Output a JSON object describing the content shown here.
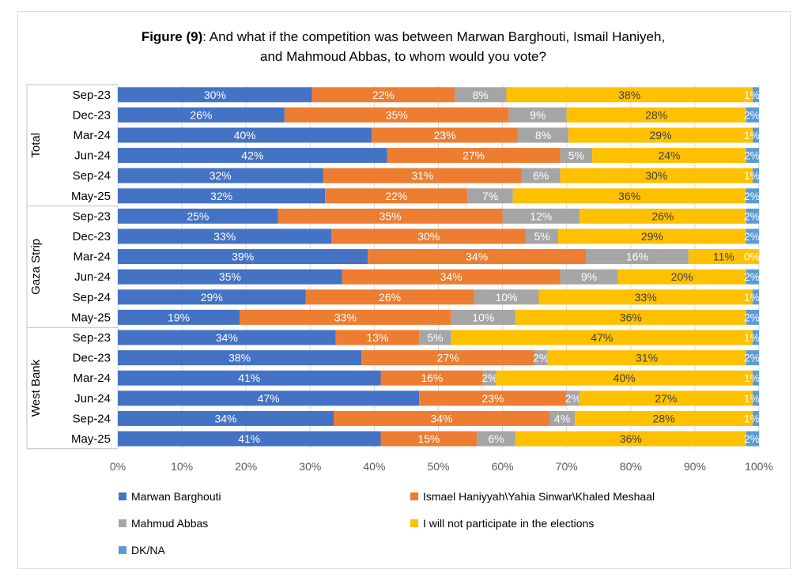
{
  "title": {
    "bold": "Figure (9)",
    "line1_rest": ": And what if the competition was between Marwan Barghouti, Ismail Haniyeh,",
    "line2": "and Mahmoud Abbas, to whom would you vote?"
  },
  "colors": {
    "barghouti": "#4472c4",
    "haniyeh": "#ed7d31",
    "abbas": "#a5a5a5",
    "notparticipate": "#ffc000",
    "dkna": "#5b9bd5",
    "grid": "#d9d9d9",
    "label_light": "#ffffff",
    "label_dark": "#404040"
  },
  "legend": [
    {
      "key": "barghouti",
      "label": "Marwan Barghouti"
    },
    {
      "key": "haniyeh",
      "label": "Ismael Haniyyah\\Yahia Sinwar\\Khaled Meshaal"
    },
    {
      "key": "abbas",
      "label": "Mahmud Abbas"
    },
    {
      "key": "notparticipate",
      "label": "I will not participate in the elections"
    },
    {
      "key": "dkna",
      "label": "DK/NA"
    }
  ],
  "chart_data": {
    "type": "bar",
    "orientation": "horizontal",
    "stacked": "percent",
    "xlim": [
      0,
      100
    ],
    "x_ticks": [
      "0%",
      "10%",
      "20%",
      "30%",
      "40%",
      "50%",
      "60%",
      "70%",
      "80%",
      "90%",
      "100%"
    ],
    "grid": true,
    "legend_position": "bottom",
    "groups": [
      {
        "name": "Total",
        "rows": [
          {
            "label": "Sep-23",
            "values": [
              30,
              22,
              8,
              38,
              1
            ],
            "labels": [
              "30%",
              "22%",
              "8%",
              "38%",
              "1%"
            ]
          },
          {
            "label": "Dec-23",
            "values": [
              26,
              35,
              9,
              28,
              2
            ],
            "labels": [
              "26%",
              "35%",
              "9%",
              "28%",
              "2%"
            ]
          },
          {
            "label": "Mar-24",
            "values": [
              40,
              23,
              8,
              29,
              1
            ],
            "labels": [
              "40%",
              "23%",
              "8%",
              "29%",
              "1%"
            ]
          },
          {
            "label": "Jun-24",
            "values": [
              42,
              27,
              5,
              24,
              2
            ],
            "labels": [
              "42%",
              "27%",
              "5%",
              "24%",
              "2%"
            ]
          },
          {
            "label": "Sep-24",
            "values": [
              32,
              31,
              6,
              30,
              1
            ],
            "labels": [
              "32%",
              "31%",
              "6%",
              "30%",
              "1%"
            ]
          },
          {
            "label": "May-25",
            "values": [
              32,
              22,
              7,
              36,
              2
            ],
            "labels": [
              "32%",
              "22%",
              "7%",
              "36%",
              "2%"
            ]
          }
        ]
      },
      {
        "name": "Gaza Strip",
        "rows": [
          {
            "label": "Sep-23",
            "values": [
              25,
              35,
              12,
              26,
              2
            ],
            "labels": [
              "25%",
              "35%",
              "12%",
              "26%",
              "2%"
            ]
          },
          {
            "label": "Dec-23",
            "values": [
              33,
              30,
              5,
              29,
              2
            ],
            "labels": [
              "33%",
              "30%",
              "5%",
              "29%",
              "2%"
            ]
          },
          {
            "label": "Mar-24",
            "values": [
              39,
              34,
              16,
              11,
              0
            ],
            "labels": [
              "39%",
              "34%",
              "16%",
              "11%",
              "0%"
            ]
          },
          {
            "label": "Jun-24",
            "values": [
              35,
              34,
              9,
              20,
              2
            ],
            "labels": [
              "35%",
              "34%",
              "9%",
              "20%",
              "2%"
            ]
          },
          {
            "label": "Sep-24",
            "values": [
              29,
              26,
              10,
              33,
              1
            ],
            "labels": [
              "29%",
              "26%",
              "10%",
              "33%",
              "1%"
            ]
          },
          {
            "label": "May-25",
            "values": [
              19,
              33,
              10,
              36,
              2
            ],
            "labels": [
              "19%",
              "33%",
              "10%",
              "36%",
              "2%"
            ]
          }
        ]
      },
      {
        "name": "West Bank",
        "rows": [
          {
            "label": "Sep-23",
            "values": [
              34,
              13,
              5,
              47,
              1
            ],
            "labels": [
              "34%",
              "13%",
              "5%",
              "47%",
              "1%"
            ]
          },
          {
            "label": "Dec-23",
            "values": [
              38,
              27,
              2,
              31,
              2
            ],
            "labels": [
              "38%",
              "27%",
              "2%",
              "31%",
              "2%"
            ]
          },
          {
            "label": "Mar-24",
            "values": [
              41,
              16,
              2,
              40,
              1
            ],
            "labels": [
              "41%",
              "16%",
              "2%",
              "40%",
              "1%"
            ]
          },
          {
            "label": "Jun-24",
            "values": [
              47,
              23,
              2,
              27,
              1
            ],
            "labels": [
              "47%",
              "23%",
              "2%",
              "27%",
              "1%"
            ]
          },
          {
            "label": "Sep-24",
            "values": [
              34,
              34,
              4,
              28,
              1
            ],
            "labels": [
              "34%",
              "34%",
              "4%",
              "28%",
              "1%"
            ]
          },
          {
            "label": "May-25",
            "values": [
              41,
              15,
              6,
              36,
              2
            ],
            "labels": [
              "41%",
              "15%",
              "6%",
              "36%",
              "2%"
            ]
          }
        ]
      }
    ],
    "series_keys": [
      "barghouti",
      "haniyeh",
      "abbas",
      "notparticipate",
      "dkna"
    ]
  }
}
